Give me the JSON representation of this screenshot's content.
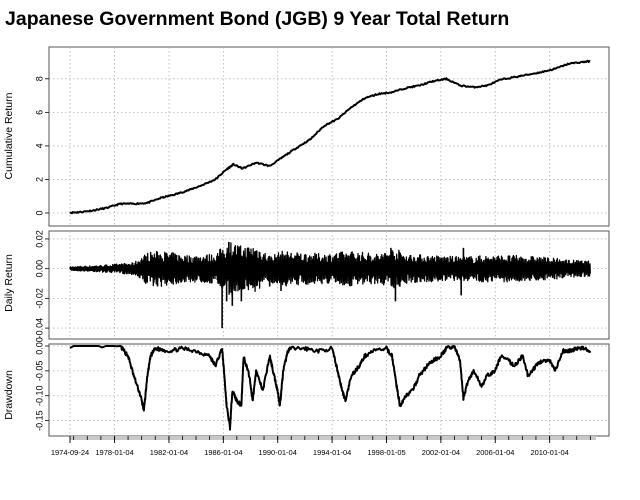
{
  "title": "Japanese Government Bond (JGB) 9 Year Total Return",
  "colors": {
    "line": "#000000",
    "grid": "#b4b4b4",
    "axis_band": "#c8c8c8"
  },
  "chart_data": [
    {
      "type": "line",
      "name": "cumulative",
      "ylabel": "Cumulative Return",
      "ylim": [
        0,
        9.3
      ],
      "yticks": [
        "0",
        "2",
        "4",
        "6",
        "8"
      ],
      "x": [
        "1974-09-24",
        "1975-06-01",
        "1976-06-01",
        "1977-06-01",
        "1978-06-01",
        "1979-06-01",
        "1980-06-01",
        "1981-06-01",
        "1982-06-01",
        "1983-06-01",
        "1984-06-01",
        "1985-06-01",
        "1986-03-01",
        "1986-10-01",
        "1987-06-01",
        "1988-06-01",
        "1989-06-01",
        "1990-06-01",
        "1991-06-01",
        "1992-06-01",
        "1993-06-01",
        "1994-06-01",
        "1995-06-01",
        "1996-06-01",
        "1997-06-01",
        "1998-06-01",
        "1999-06-01",
        "2000-06-01",
        "2001-06-01",
        "2002-06-01",
        "2003-06-01",
        "2004-06-01",
        "2005-06-01",
        "2006-06-01",
        "2007-06-01",
        "2008-06-01",
        "2009-06-01",
        "2010-06-01",
        "2011-06-01",
        "2012-06-01",
        "2013-01-01"
      ],
      "values": [
        0.02,
        0.05,
        0.15,
        0.3,
        0.55,
        0.55,
        0.6,
        0.9,
        1.1,
        1.35,
        1.65,
        2.0,
        2.55,
        2.9,
        2.65,
        3.0,
        2.8,
        3.35,
        3.9,
        4.4,
        5.2,
        5.6,
        6.3,
        6.85,
        7.1,
        7.2,
        7.45,
        7.6,
        7.85,
        8.0,
        7.6,
        7.5,
        7.6,
        7.95,
        8.1,
        8.25,
        8.4,
        8.6,
        8.9,
        9.0,
        9.05
      ]
    },
    {
      "type": "line",
      "name": "daily",
      "ylabel": "Daily Return",
      "ylim": [
        -0.046,
        0.024
      ],
      "yticks": [
        "0.02",
        "0.00",
        "-0.02",
        "-0.04"
      ],
      "x": [
        "1974-09-24",
        "1977-06-01",
        "1979-06-01",
        "1980-06-01",
        "1981-06-01",
        "1983-06-01",
        "1985-06-01",
        "1986-06-01",
        "1987-06-01",
        "1988-06-01",
        "1989-06-01",
        "1990-06-01",
        "1991-06-01",
        "1993-06-01",
        "1995-06-01",
        "1997-06-01",
        "1998-09-01",
        "1999-06-01",
        "2001-06-01",
        "2003-06-01",
        "2005-06-01",
        "2007-06-01",
        "2009-06-01",
        "2011-06-01",
        "2013-01-01"
      ],
      "amplitude": [
        0.0012,
        0.0025,
        0.004,
        0.011,
        0.012,
        0.009,
        0.01,
        0.019,
        0.015,
        0.016,
        0.009,
        0.012,
        0.011,
        0.01,
        0.012,
        0.01,
        0.014,
        0.01,
        0.009,
        0.008,
        0.009,
        0.009,
        0.008,
        0.006,
        0.005
      ],
      "extremes": [
        [
          "1981-03-01",
          -0.012
        ],
        [
          "1985-12-01",
          -0.04
        ],
        [
          "1986-04-01",
          -0.022
        ],
        [
          "1986-06-01",
          0.018
        ],
        [
          "1986-09-01",
          -0.025
        ],
        [
          "1987-05-01",
          -0.022
        ],
        [
          "1989-06-01",
          -0.012
        ],
        [
          "1990-04-01",
          -0.015
        ],
        [
          "1998-09-01",
          -0.022
        ],
        [
          "1998-05-01",
          0.014
        ],
        [
          "2003-07-01",
          -0.018
        ],
        [
          "2003-09-01",
          0.014
        ]
      ]
    },
    {
      "type": "line",
      "name": "drawdown",
      "ylabel": "Drawdown",
      "ylim": [
        -0.177,
        0.0
      ],
      "yticks": [
        "0.00",
        "-0.05",
        "-0.10",
        "-0.15"
      ],
      "x": [
        "1974-09-24",
        "1978-06-01",
        "1979-01-01",
        "1979-06-01",
        "1979-12-01",
        "1980-03-01",
        "1980-06-01",
        "1980-09-01",
        "1981-01-01",
        "1982-01-01",
        "1983-01-01",
        "1984-01-01",
        "1985-01-01",
        "1985-06-01",
        "1985-12-01",
        "1986-02-01",
        "1986-04-01",
        "1986-07-01",
        "1986-09-01",
        "1987-01-01",
        "1987-05-01",
        "1987-07-01",
        "1987-12-01",
        "1988-03-01",
        "1988-06-01",
        "1988-12-01",
        "1989-06-01",
        "1989-10-01",
        "1990-01-01",
        "1990-03-01",
        "1990-06-01",
        "1990-10-01",
        "1991-01-01",
        "1992-01-01",
        "1993-01-01",
        "1994-01-01",
        "1994-06-01",
        "1994-10-01",
        "1995-01-01",
        "1995-06-01",
        "1996-01-01",
        "1996-06-01",
        "1997-01-01",
        "1998-01-01",
        "1998-06-01",
        "1998-10-01",
        "1999-01-01",
        "1999-06-01",
        "1999-12-01",
        "2000-06-01",
        "2001-01-01",
        "2001-06-01",
        "2002-01-01",
        "2002-06-01",
        "2003-01-01",
        "2003-06-01",
        "2003-09-01",
        "2004-01-01",
        "2004-06-01",
        "2005-01-01",
        "2005-06-01",
        "2006-01-01",
        "2006-06-01",
        "2007-01-01",
        "2007-06-01",
        "2008-01-01",
        "2008-06-01",
        "2009-01-01",
        "2009-06-01",
        "2010-01-01",
        "2010-06-01",
        "2011-01-01",
        "2011-06-01",
        "2012-01-01",
        "2012-06-01",
        "2013-01-01"
      ],
      "values": [
        0,
        0,
        -0.02,
        -0.06,
        -0.1,
        -0.13,
        -0.06,
        -0.02,
        -0.005,
        -0.01,
        -0.005,
        -0.01,
        -0.02,
        -0.04,
        -0.005,
        -0.06,
        -0.12,
        -0.165,
        -0.09,
        -0.11,
        -0.12,
        -0.02,
        -0.06,
        -0.11,
        -0.05,
        -0.09,
        -0.02,
        -0.06,
        -0.09,
        -0.12,
        -0.05,
        -0.01,
        -0.005,
        -0.005,
        -0.01,
        -0.005,
        -0.05,
        -0.09,
        -0.11,
        -0.06,
        -0.04,
        -0.02,
        -0.01,
        -0.005,
        -0.02,
        -0.08,
        -0.12,
        -0.1,
        -0.09,
        -0.06,
        -0.04,
        -0.03,
        -0.02,
        -0.005,
        0,
        -0.03,
        -0.105,
        -0.07,
        -0.05,
        -0.08,
        -0.06,
        -0.05,
        -0.02,
        -0.03,
        -0.04,
        -0.02,
        -0.06,
        -0.04,
        -0.03,
        -0.03,
        -0.05,
        -0.01,
        -0.01,
        -0.005,
        -0.005,
        -0.01
      ]
    }
  ],
  "x_axis": {
    "range": [
      "1974-09-24",
      "2013-06-01"
    ],
    "tick_labels": [
      "1974-09-24",
      "1978-01-04",
      "1982-01-04",
      "1986-01-04",
      "1990-01-04",
      "1994-01-04",
      "1998-01-05",
      "2002-01-04",
      "2006-01-04",
      "2010-01-04"
    ]
  }
}
